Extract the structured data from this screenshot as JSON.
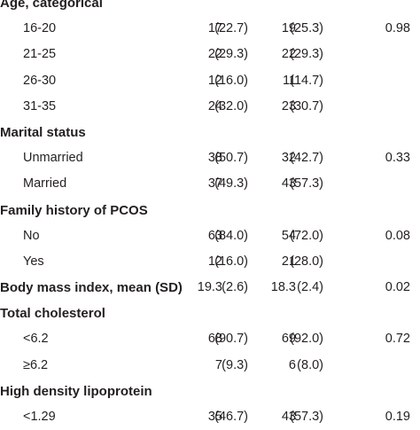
{
  "rows": [
    {
      "type": "section",
      "label": "Age, categorical"
    },
    {
      "type": "sub",
      "label": "16-20",
      "n1": "17",
      "p1": "(22.7)",
      "n2": "19",
      "p2": "(25.3)",
      "pv": "0.98"
    },
    {
      "type": "sub",
      "label": "21-25",
      "n1": "22",
      "p1": "(29.3)",
      "n2": "22",
      "p2": "(29.3)",
      "pv": ""
    },
    {
      "type": "sub",
      "label": "26-30",
      "n1": "12",
      "p1": "(16.0)",
      "n2": "11",
      "p2": "(14.7)",
      "pv": ""
    },
    {
      "type": "sub",
      "label": "31-35",
      "n1": "24",
      "p1": "(32.0)",
      "n2": "23",
      "p2": "(30.7)",
      "pv": ""
    },
    {
      "type": "section",
      "label": "Marital status"
    },
    {
      "type": "sub",
      "label": "Unmarried",
      "n1": "38",
      "p1": "(50.7)",
      "n2": "32",
      "p2": "(42.7)",
      "pv": "0.33"
    },
    {
      "type": "sub",
      "label": "Married",
      "n1": "37",
      "p1": "(49.3)",
      "n2": "43",
      "p2": "(57.3)",
      "pv": ""
    },
    {
      "type": "section",
      "label": "Family history of PCOS"
    },
    {
      "type": "sub",
      "label": "No",
      "n1": "63",
      "p1": "(84.0)",
      "n2": "54",
      "p2": "(72.0)",
      "pv": "0.08"
    },
    {
      "type": "sub",
      "label": "Yes",
      "n1": "12",
      "p1": "(16.0)",
      "n2": "21",
      "p2": "(28.0)",
      "pv": ""
    },
    {
      "type": "bold-row",
      "label": "Body mass index, mean (SD)",
      "n1": "19.3",
      "p1": "(2.6)",
      "n2": "18.3",
      "p2": "(2.4)",
      "pv": "0.02"
    },
    {
      "type": "section",
      "label": "Total cholesterol"
    },
    {
      "type": "sub",
      "label": "<6.2",
      "n1": "68",
      "p1": "(90.7)",
      "n2": "69",
      "p2": "(92.0)",
      "pv": "0.72"
    },
    {
      "type": "sub",
      "label": "≥6.2",
      "n1": "7",
      "p1": "(9.3)",
      "n2": "6",
      "p2": "(8.0)",
      "pv": ""
    },
    {
      "type": "section",
      "label": "High density lipoprotein"
    },
    {
      "type": "sub",
      "label": "<1.29",
      "n1": "35",
      "p1": "(46.7)",
      "n2": "43",
      "p2": "(57.3)",
      "pv": "0.19"
    }
  ]
}
